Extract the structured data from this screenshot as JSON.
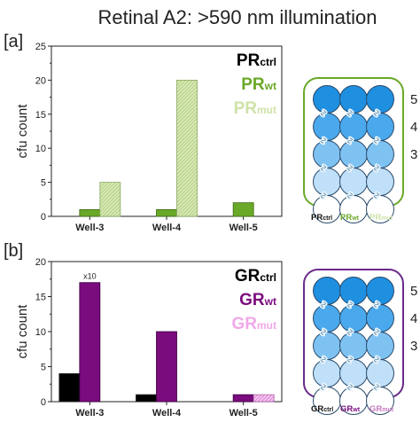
{
  "title": "Retinal A2: >590 nm illumination",
  "colors": {
    "pr_wt": "#6aa828",
    "pr_mut": "#cfe3a8",
    "gr_wt": "#7a0c7e",
    "gr_mut": "#f0a8e8",
    "ctrl": "#000000",
    "pr_plate_border": "#6aa828",
    "gr_plate_border": "#6a2a8a"
  },
  "chart_data": [
    {
      "type": "bar",
      "panel": "[a]",
      "title": "",
      "ylabel": "cfu count",
      "xlabel": "",
      "categories": [
        "Well-3",
        "Well-4",
        "Well-5"
      ],
      "ylim": [
        0,
        25
      ],
      "yticks": [
        0,
        5,
        10,
        15,
        20,
        25
      ],
      "legend_position": "top-right",
      "legend": [
        {
          "base": "PR",
          "sub": "ctrl"
        },
        {
          "base": "PR",
          "sub": "wt"
        },
        {
          "base": "PR",
          "sub": "mut"
        }
      ],
      "series": [
        {
          "name": "PRctrl",
          "values": [
            0,
            0,
            0
          ]
        },
        {
          "name": "PRwt",
          "values": [
            1,
            1,
            2
          ]
        },
        {
          "name": "PRmut",
          "values": [
            5,
            20,
            0
          ]
        }
      ]
    },
    {
      "type": "bar",
      "panel": "[b]",
      "title": "",
      "ylabel": "cfu count",
      "xlabel": "",
      "categories": [
        "Well-3",
        "Well-4",
        "Well-5"
      ],
      "ylim": [
        0,
        20
      ],
      "yticks": [
        0,
        5,
        10,
        15,
        20
      ],
      "legend_position": "top-right",
      "annotation": {
        "text": "x10",
        "category": "Well-3",
        "series": "GRwt"
      },
      "legend": [
        {
          "base": "GR",
          "sub": "ctrl"
        },
        {
          "base": "GR",
          "sub": "wt"
        },
        {
          "base": "GR",
          "sub": "mut"
        }
      ],
      "series": [
        {
          "name": "GRctrl",
          "values": [
            4,
            1,
            0
          ]
        },
        {
          "name": "GRwt",
          "values": [
            17,
            10,
            1
          ]
        },
        {
          "name": "GRmut",
          "values": [
            0,
            0,
            1
          ]
        }
      ]
    }
  ],
  "plates": [
    {
      "row_labels": [
        "5",
        "4",
        "3"
      ],
      "legend": [
        {
          "base": "PR",
          "sub": "ctrl"
        },
        {
          "base": "PR",
          "sub": "wt"
        },
        {
          "base": "PR",
          "sub": "mut"
        }
      ]
    },
    {
      "row_labels": [
        "5",
        "4",
        "3"
      ],
      "legend": [
        {
          "base": "GR",
          "sub": "ctrl"
        },
        {
          "base": "GR",
          "sub": "wt"
        },
        {
          "base": "GR",
          "sub": "mut"
        }
      ]
    }
  ]
}
